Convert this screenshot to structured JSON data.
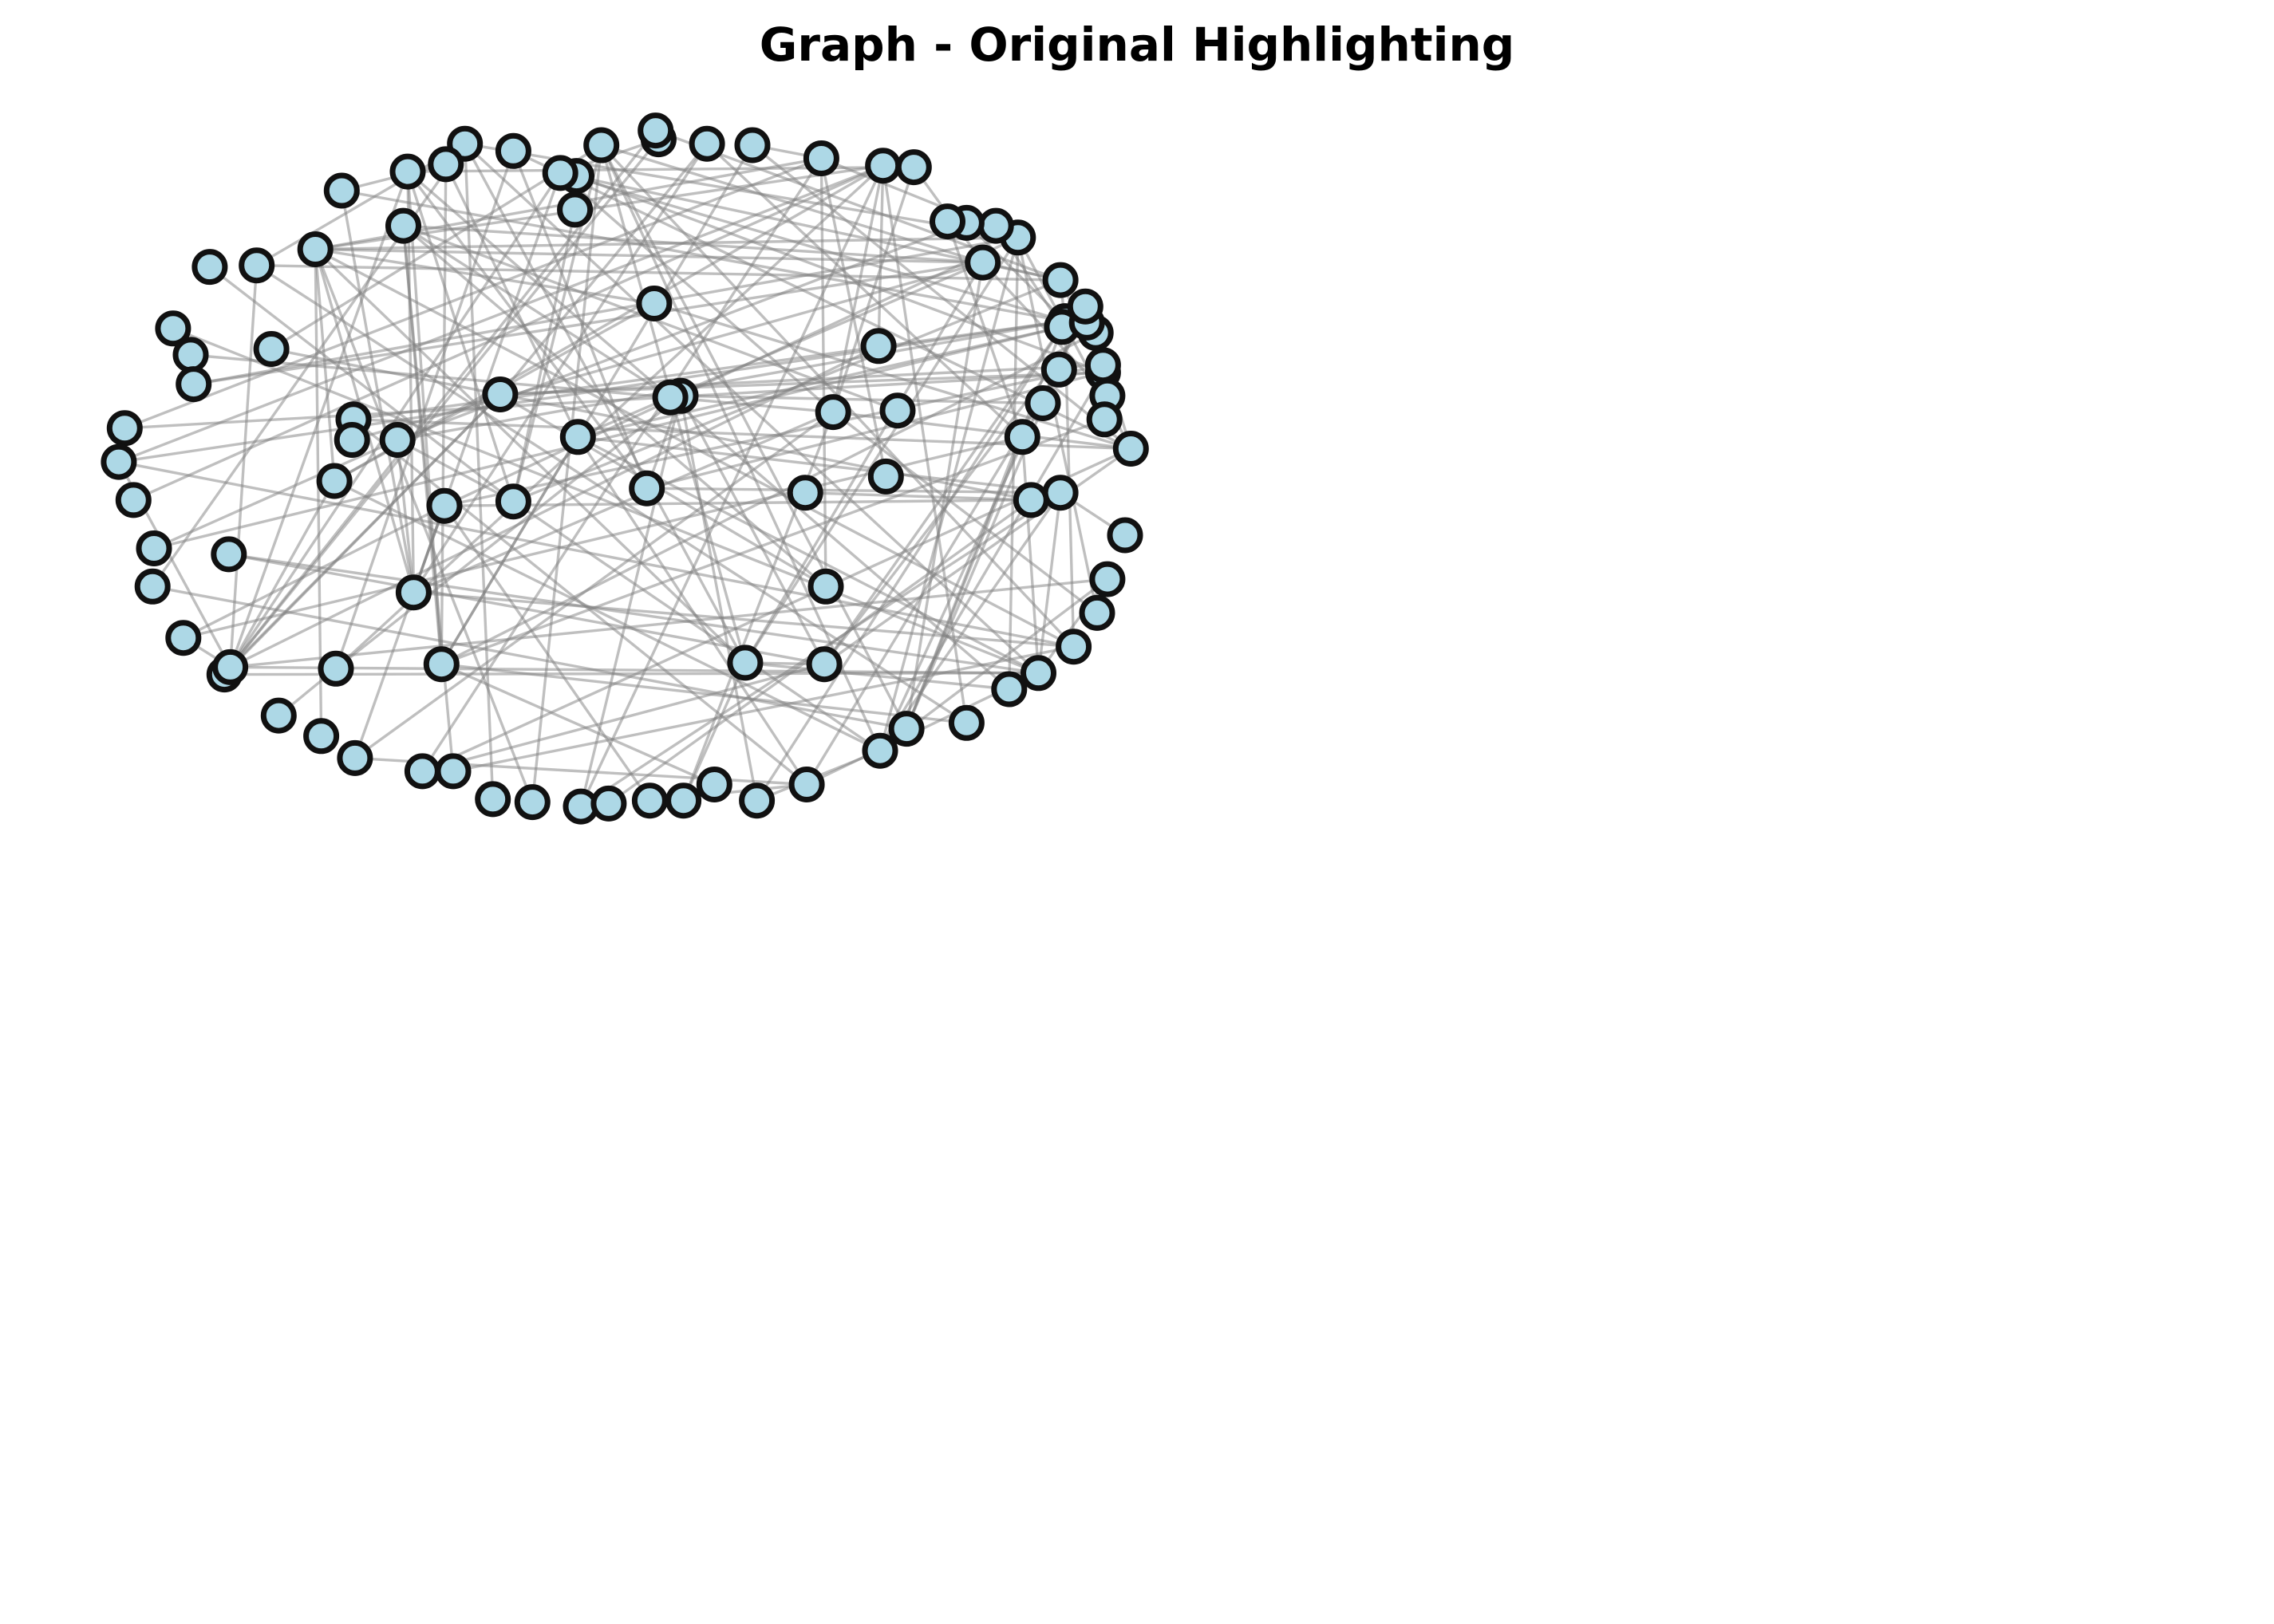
{
  "title": "Graph - Original Highlighting",
  "colors": {
    "node_fill": "#add8e6",
    "node_stroke": "#111111",
    "edge": "#808080",
    "background": "#ffffff"
  },
  "graph": {
    "node_count": 100,
    "edge_count": 200,
    "edges_note": "edges are generated procedurally in the page script"
  }
}
